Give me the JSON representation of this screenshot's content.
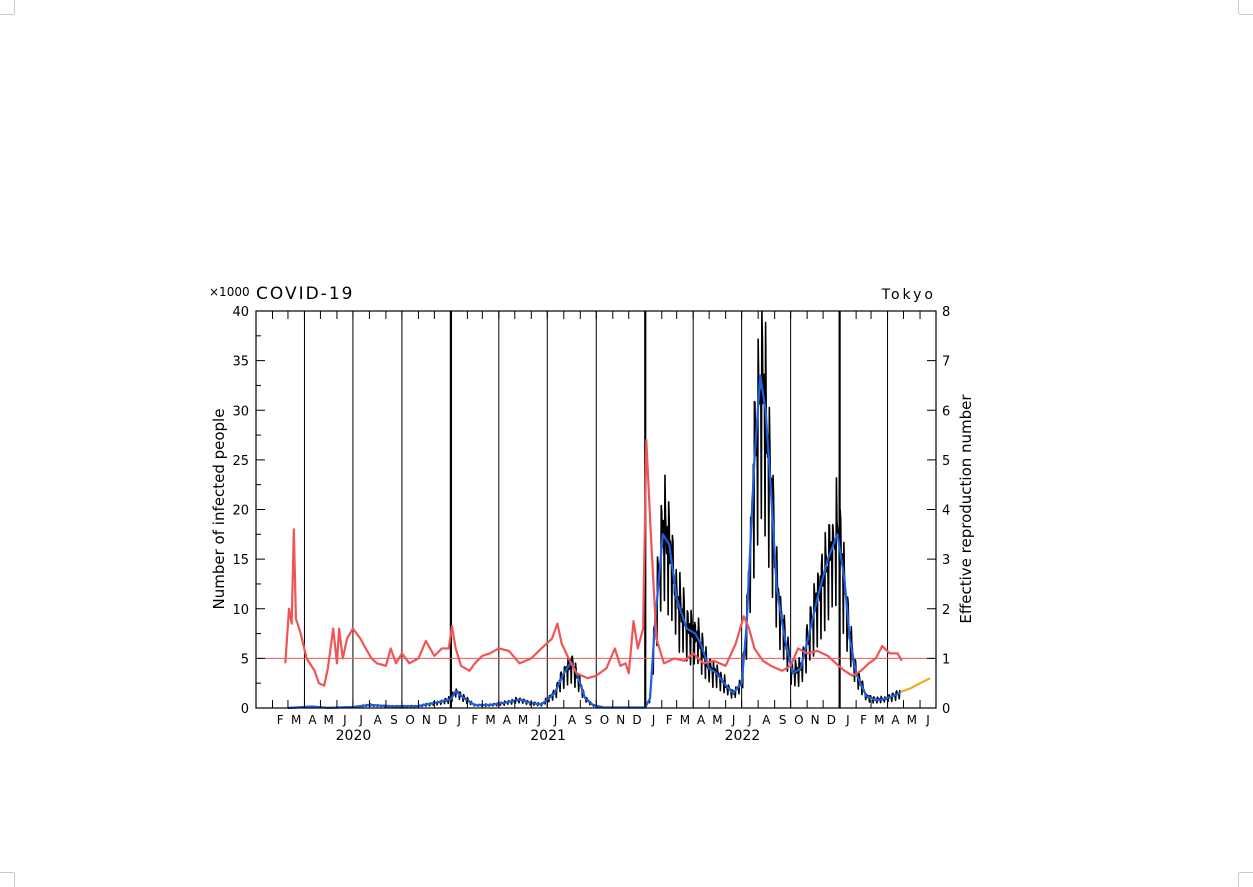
{
  "chart_data": {
    "type": "line",
    "title": "COVID-19",
    "region": "Tokyo",
    "multiplier_label": "×1000",
    "ylabel": "Number of infected people",
    "ylabel_right": "Effective reproduction number",
    "ylim": [
      0,
      40
    ],
    "ylim_right": [
      0,
      8
    ],
    "yticks": [
      "0",
      "5",
      "10",
      "15",
      "20",
      "25",
      "30",
      "35",
      "40"
    ],
    "yticks_right": [
      "0",
      "1",
      "2",
      "3",
      "4",
      "5",
      "6",
      "7",
      "8"
    ],
    "x_start": "2020-01-01",
    "x_end": "2023-07-01",
    "month_labels": [
      "F",
      "M",
      "A",
      "M",
      "J",
      "J",
      "A",
      "S",
      "O",
      "N",
      "D",
      "J",
      "F",
      "M",
      "A",
      "M",
      "J",
      "J",
      "A",
      "S",
      "O",
      "N",
      "D",
      "J",
      "F",
      "M",
      "A",
      "M",
      "J",
      "J",
      "A",
      "S",
      "O",
      "N",
      "D",
      "J",
      "F",
      "M",
      "A",
      "M",
      "J"
    ],
    "year_labels": [
      "2020",
      "2021",
      "2022"
    ],
    "reference_line_right": 1,
    "colors": {
      "daily_cases": "#000000",
      "weekly_average": "#1f5fe0",
      "reproduction_number": "#f05555",
      "projection": "#f5a623",
      "reference_line": "#f05555"
    },
    "series": [
      {
        "key": "weekly_average",
        "axis": "left",
        "points": [
          [
            "2020-03-01",
            0
          ],
          [
            "2020-04-15",
            0.15
          ],
          [
            "2020-05-15",
            0.02
          ],
          [
            "2020-07-01",
            0.1
          ],
          [
            "2020-08-01",
            0.3
          ],
          [
            "2020-09-15",
            0.17
          ],
          [
            "2020-11-01",
            0.2
          ],
          [
            "2020-12-15",
            0.65
          ],
          [
            "2021-01-01",
            0.9
          ],
          [
            "2021-01-10",
            1.7
          ],
          [
            "2021-01-25",
            1.0
          ],
          [
            "2021-02-15",
            0.3
          ],
          [
            "2021-03-15",
            0.3
          ],
          [
            "2021-04-15",
            0.55
          ],
          [
            "2021-05-10",
            0.85
          ],
          [
            "2021-06-01",
            0.5
          ],
          [
            "2021-06-20",
            0.35
          ],
          [
            "2021-07-15",
            1.5
          ],
          [
            "2021-08-01",
            3.5
          ],
          [
            "2021-08-15",
            4.6
          ],
          [
            "2021-08-25",
            3.5
          ],
          [
            "2021-09-10",
            1.0
          ],
          [
            "2021-09-25",
            0.3
          ],
          [
            "2021-10-15",
            0.05
          ],
          [
            "2022-01-01",
            0.05
          ],
          [
            "2022-01-10",
            1.0
          ],
          [
            "2022-01-20",
            9.0
          ],
          [
            "2022-02-03",
            17.5
          ],
          [
            "2022-02-15",
            16.5
          ],
          [
            "2022-03-01",
            11
          ],
          [
            "2022-03-20",
            8.0
          ],
          [
            "2022-04-05",
            7.5
          ],
          [
            "2022-04-15",
            6.5
          ],
          [
            "2022-05-01",
            4.0
          ],
          [
            "2022-05-15",
            3.5
          ],
          [
            "2022-06-01",
            2.3
          ],
          [
            "2022-06-15",
            1.5
          ],
          [
            "2022-07-01",
            2.5
          ],
          [
            "2022-07-10",
            8
          ],
          [
            "2022-07-25",
            25
          ],
          [
            "2022-08-05",
            33.5
          ],
          [
            "2022-08-15",
            30
          ],
          [
            "2022-08-25",
            22
          ],
          [
            "2022-09-05",
            12
          ],
          [
            "2022-09-20",
            7
          ],
          [
            "2022-10-05",
            3.5
          ],
          [
            "2022-10-20",
            4.0
          ],
          [
            "2022-11-05",
            7.5
          ],
          [
            "2022-11-20",
            11.0
          ],
          [
            "2022-12-10",
            15.0
          ],
          [
            "2022-12-28",
            17.5
          ],
          [
            "2023-01-10",
            13
          ],
          [
            "2023-01-20",
            7
          ],
          [
            "2023-02-01",
            3.5
          ],
          [
            "2023-02-20",
            1.2
          ],
          [
            "2023-03-10",
            0.8
          ],
          [
            "2023-03-25",
            0.9
          ],
          [
            "2023-04-10",
            1.2
          ],
          [
            "2023-04-25",
            1.5
          ]
        ]
      },
      {
        "key": "reproduction_number",
        "axis": "right",
        "points": [
          [
            "2020-02-25",
            0.9
          ],
          [
            "2020-03-03",
            2.0
          ],
          [
            "2020-03-08",
            1.7
          ],
          [
            "2020-03-12",
            3.6
          ],
          [
            "2020-03-16",
            1.8
          ],
          [
            "2020-03-25",
            1.5
          ],
          [
            "2020-04-05",
            1.0
          ],
          [
            "2020-04-20",
            0.75
          ],
          [
            "2020-04-28",
            0.5
          ],
          [
            "2020-05-08",
            0.45
          ],
          [
            "2020-05-15",
            0.8
          ],
          [
            "2020-05-25",
            1.6
          ],
          [
            "2020-06-01",
            0.9
          ],
          [
            "2020-06-05",
            1.6
          ],
          [
            "2020-06-12",
            1.0
          ],
          [
            "2020-06-20",
            1.4
          ],
          [
            "2020-07-01",
            1.6
          ],
          [
            "2020-07-15",
            1.4
          ],
          [
            "2020-07-25",
            1.2
          ],
          [
            "2020-08-05",
            1.0
          ],
          [
            "2020-08-15",
            0.9
          ],
          [
            "2020-09-01",
            0.85
          ],
          [
            "2020-09-10",
            1.2
          ],
          [
            "2020-09-20",
            0.9
          ],
          [
            "2020-10-01",
            1.1
          ],
          [
            "2020-10-15",
            0.9
          ],
          [
            "2020-11-01",
            1.0
          ],
          [
            "2020-11-15",
            1.35
          ],
          [
            "2020-12-01",
            1.05
          ],
          [
            "2020-12-15",
            1.2
          ],
          [
            "2020-12-28",
            1.2
          ],
          [
            "2021-01-03",
            1.65
          ],
          [
            "2021-01-10",
            1.2
          ],
          [
            "2021-01-20",
            0.85
          ],
          [
            "2021-02-05",
            0.75
          ],
          [
            "2021-02-15",
            0.9
          ],
          [
            "2021-03-01",
            1.05
          ],
          [
            "2021-03-15",
            1.1
          ],
          [
            "2021-04-01",
            1.2
          ],
          [
            "2021-04-20",
            1.15
          ],
          [
            "2021-05-10",
            0.9
          ],
          [
            "2021-06-01",
            1.0
          ],
          [
            "2021-06-20",
            1.2
          ],
          [
            "2021-07-10",
            1.4
          ],
          [
            "2021-07-20",
            1.7
          ],
          [
            "2021-07-28",
            1.3
          ],
          [
            "2021-08-10",
            1.0
          ],
          [
            "2021-08-25",
            0.7
          ],
          [
            "2021-09-15",
            0.6
          ],
          [
            "2021-10-01",
            0.65
          ],
          [
            "2021-10-20",
            0.8
          ],
          [
            "2021-11-05",
            1.2
          ],
          [
            "2021-11-15",
            0.85
          ],
          [
            "2021-11-25",
            0.9
          ],
          [
            "2021-12-01",
            0.7
          ],
          [
            "2021-12-10",
            1.75
          ],
          [
            "2021-12-18",
            1.2
          ],
          [
            "2021-12-28",
            1.6
          ],
          [
            "2022-01-03",
            5.4
          ],
          [
            "2022-01-12",
            3.4
          ],
          [
            "2022-01-22",
            1.4
          ],
          [
            "2022-02-05",
            0.9
          ],
          [
            "2022-02-25",
            1.0
          ],
          [
            "2022-03-15",
            0.95
          ],
          [
            "2022-04-01",
            1.1
          ],
          [
            "2022-04-20",
            0.9
          ],
          [
            "2022-05-10",
            0.95
          ],
          [
            "2022-06-01",
            0.85
          ],
          [
            "2022-06-20",
            1.3
          ],
          [
            "2022-07-05",
            1.85
          ],
          [
            "2022-07-15",
            1.6
          ],
          [
            "2022-07-25",
            1.2
          ],
          [
            "2022-08-10",
            0.95
          ],
          [
            "2022-08-25",
            0.85
          ],
          [
            "2022-09-15",
            0.75
          ],
          [
            "2022-10-01",
            0.85
          ],
          [
            "2022-10-15",
            1.2
          ],
          [
            "2022-11-01",
            1.1
          ],
          [
            "2022-11-20",
            1.15
          ],
          [
            "2022-12-10",
            1.05
          ],
          [
            "2022-12-25",
            0.9
          ],
          [
            "2023-01-10",
            0.75
          ],
          [
            "2023-01-25",
            0.65
          ],
          [
            "2023-02-10",
            0.75
          ],
          [
            "2023-02-25",
            0.9
          ],
          [
            "2023-03-10",
            1.0
          ],
          [
            "2023-03-22",
            1.25
          ],
          [
            "2023-04-05",
            1.1
          ],
          [
            "2023-04-20",
            1.1
          ],
          [
            "2023-04-28",
            0.95
          ]
        ]
      },
      {
        "key": "projection",
        "axis": "left",
        "points": [
          [
            "2023-04-25",
            1.6
          ],
          [
            "2023-05-15",
            2.0
          ],
          [
            "2023-06-01",
            2.5
          ],
          [
            "2023-06-20",
            3.0
          ]
        ]
      }
    ]
  }
}
